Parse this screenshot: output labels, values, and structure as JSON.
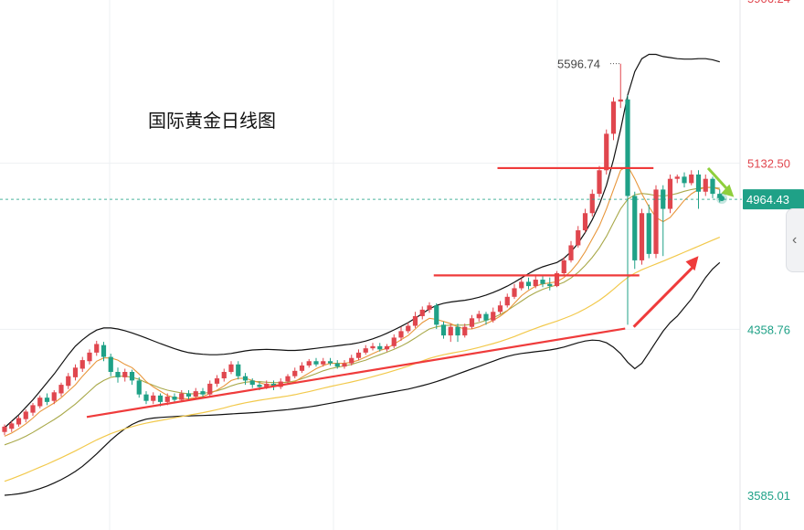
{
  "chart_data": {
    "type": "candlestick",
    "title": "国际黄金日线图",
    "y_tick_labels": [
      "5132.50",
      "4358.76",
      "3585.01"
    ],
    "top_cut_label": "5906.24",
    "current_price": "4964.43",
    "peak_label": "5596.74",
    "ylim": [
      3585.01,
      5906.24
    ],
    "colors": {
      "up": "#e0464e",
      "down": "#1fa187",
      "price_tag": "#1fa187",
      "trend_line": "#ef3b3b",
      "arrow_down": "#8fcf3c",
      "ma_fast": "#e8963a",
      "ma_mid": "#a9a94a",
      "ma_slow": "#f2c94c",
      "band": "#111111"
    },
    "candles": [
      [
        3880,
        3905,
        3865,
        3915
      ],
      [
        3895,
        3920,
        3880,
        3930
      ],
      [
        3915,
        3945,
        3905,
        3955
      ],
      [
        3940,
        3975,
        3925,
        3985
      ],
      [
        3970,
        4005,
        3955,
        4015
      ],
      [
        4000,
        4040,
        3990,
        4050
      ],
      [
        4040,
        4020,
        4005,
        4060
      ],
      [
        4025,
        4065,
        4010,
        4075
      ],
      [
        4060,
        4100,
        4045,
        4110
      ],
      [
        4095,
        4140,
        4080,
        4155
      ],
      [
        4135,
        4180,
        4120,
        4195
      ],
      [
        4175,
        4215,
        4160,
        4230
      ],
      [
        4210,
        4250,
        4195,
        4265
      ],
      [
        4250,
        4290,
        4235,
        4305
      ],
      [
        4285,
        4230,
        4210,
        4300
      ],
      [
        4230,
        4160,
        4140,
        4245
      ],
      [
        4160,
        4135,
        4110,
        4180
      ],
      [
        4135,
        4160,
        4115,
        4175
      ],
      [
        4160,
        4120,
        4100,
        4170
      ],
      [
        4120,
        4055,
        4040,
        4135
      ],
      [
        4055,
        4025,
        4010,
        4070
      ],
      [
        4025,
        4050,
        4010,
        4065
      ],
      [
        4050,
        4020,
        4000,
        4060
      ],
      [
        4020,
        4045,
        4005,
        4060
      ],
      [
        4045,
        4030,
        4015,
        4060
      ],
      [
        4030,
        4060,
        4020,
        4075
      ],
      [
        4060,
        4045,
        4030,
        4075
      ],
      [
        4045,
        4070,
        4035,
        4085
      ],
      [
        4070,
        4055,
        4040,
        4085
      ],
      [
        4055,
        4105,
        4045,
        4120
      ],
      [
        4105,
        4130,
        4090,
        4145
      ],
      [
        4130,
        4160,
        4115,
        4175
      ],
      [
        4160,
        4195,
        4150,
        4210
      ],
      [
        4195,
        4140,
        4125,
        4210
      ],
      [
        4140,
        4120,
        4100,
        4155
      ],
      [
        4120,
        4100,
        4085,
        4130
      ],
      [
        4100,
        4090,
        4075,
        4115
      ],
      [
        4090,
        4105,
        4080,
        4120
      ],
      [
        4105,
        4090,
        4075,
        4120
      ],
      [
        4090,
        4115,
        4080,
        4130
      ],
      [
        4115,
        4140,
        4105,
        4150
      ],
      [
        4140,
        4165,
        4130,
        4180
      ],
      [
        4165,
        4190,
        4155,
        4205
      ],
      [
        4190,
        4210,
        4180,
        4220
      ],
      [
        4210,
        4195,
        4185,
        4225
      ],
      [
        4195,
        4210,
        4185,
        4225
      ],
      [
        4210,
        4200,
        4190,
        4225
      ],
      [
        4200,
        4185,
        4175,
        4215
      ],
      [
        4185,
        4200,
        4175,
        4215
      ],
      [
        4200,
        4225,
        4190,
        4240
      ],
      [
        4225,
        4250,
        4215,
        4265
      ],
      [
        4250,
        4270,
        4240,
        4285
      ],
      [
        4270,
        4280,
        4260,
        4295
      ],
      [
        4280,
        4265,
        4255,
        4295
      ],
      [
        4265,
        4280,
        4255,
        4290
      ],
      [
        4280,
        4320,
        4270,
        4335
      ],
      [
        4320,
        4350,
        4305,
        4370
      ],
      [
        4350,
        4375,
        4340,
        4390
      ],
      [
        4375,
        4420,
        4365,
        4440
      ],
      [
        4420,
        4450,
        4405,
        4465
      ],
      [
        4450,
        4470,
        4435,
        4485
      ],
      [
        4470,
        4380,
        4360,
        4480
      ],
      [
        4380,
        4330,
        4315,
        4395
      ],
      [
        4330,
        4370,
        4300,
        4385
      ],
      [
        4370,
        4330,
        4300,
        4385
      ],
      [
        4330,
        4370,
        4320,
        4385
      ],
      [
        4370,
        4410,
        4360,
        4425
      ],
      [
        4410,
        4430,
        4395,
        4445
      ],
      [
        4430,
        4400,
        4380,
        4440
      ],
      [
        4400,
        4440,
        4390,
        4460
      ],
      [
        4440,
        4470,
        4430,
        4490
      ],
      [
        4470,
        4510,
        4460,
        4525
      ],
      [
        4510,
        4550,
        4500,
        4570
      ],
      [
        4550,
        4580,
        4540,
        4595
      ],
      [
        4580,
        4560,
        4545,
        4600
      ],
      [
        4560,
        4590,
        4550,
        4610
      ],
      [
        4590,
        4570,
        4555,
        4605
      ],
      [
        4570,
        4560,
        4540,
        4600
      ],
      [
        4560,
        4620,
        4555,
        4630
      ],
      [
        4620,
        4680,
        4610,
        4695
      ],
      [
        4680,
        4750,
        4670,
        4770
      ],
      [
        4750,
        4820,
        4740,
        4840
      ],
      [
        4820,
        4900,
        4810,
        4920
      ],
      [
        4900,
        4990,
        4885,
        5010
      ],
      [
        4990,
        5100,
        4975,
        5120
      ],
      [
        5100,
        5270,
        5080,
        5290
      ],
      [
        5270,
        5420,
        5240,
        5440
      ],
      [
        5420,
        5430,
        5390,
        5596.74
      ],
      [
        5430,
        4980,
        4380,
        5450
      ],
      [
        4980,
        4680,
        4640,
        5000
      ],
      [
        4680,
        4900,
        4660,
        4920
      ],
      [
        4900,
        4710,
        4690,
        4940
      ],
      [
        4710,
        5010,
        4690,
        5030
      ],
      [
        5010,
        4920,
        4700,
        5030
      ],
      [
        4920,
        5060,
        4900,
        5080
      ],
      [
        5060,
        5070,
        5040,
        5080
      ],
      [
        5070,
        5040,
        5020,
        5090
      ],
      [
        5040,
        5080,
        5030,
        5100
      ],
      [
        5080,
        5000,
        4920,
        5100
      ],
      [
        5000,
        5060,
        4980,
        5080
      ],
      [
        5060,
        4990,
        4970,
        5070
      ],
      [
        4990,
        4970,
        4950,
        5010
      ]
    ],
    "ma_fast": [
      3860,
      3875,
      3895,
      3918,
      3945,
      3975,
      3995,
      4015,
      4040,
      4070,
      4100,
      4140,
      4175,
      4210,
      4225,
      4225,
      4215,
      4195,
      4180,
      4150,
      4115,
      4090,
      4070,
      4050,
      4040,
      4035,
      4035,
      4040,
      4045,
      4060,
      4075,
      4095,
      4120,
      4130,
      4130,
      4120,
      4110,
      4100,
      4100,
      4100,
      4105,
      4115,
      4135,
      4155,
      4175,
      4190,
      4200,
      4200,
      4200,
      4205,
      4215,
      4230,
      4245,
      4260,
      4270,
      4290,
      4310,
      4330,
      4360,
      4390,
      4410,
      4405,
      4395,
      4385,
      4370,
      4360,
      4360,
      4370,
      4385,
      4400,
      4420,
      4445,
      4480,
      4515,
      4540,
      4560,
      4570,
      4575,
      4580,
      4600,
      4630,
      4670,
      4720,
      4780,
      4840,
      4920,
      5010,
      5100,
      5120,
      5060,
      4990,
      4930,
      4880,
      4860,
      4880,
      4920,
      4960,
      4990,
      5010,
      5020,
      5020,
      5010
    ],
    "ma_mid": [
      3820,
      3832,
      3845,
      3860,
      3878,
      3898,
      3918,
      3938,
      3960,
      3985,
      4010,
      4040,
      4070,
      4100,
      4120,
      4135,
      4140,
      4140,
      4135,
      4125,
      4110,
      4098,
      4085,
      4075,
      4068,
      4062,
      4058,
      4058,
      4060,
      4065,
      4072,
      4082,
      4095,
      4105,
      4112,
      4115,
      4115,
      4112,
      4110,
      4110,
      4112,
      4118,
      4128,
      4140,
      4152,
      4165,
      4175,
      4182,
      4188,
      4195,
      4205,
      4215,
      4228,
      4240,
      4252,
      4265,
      4280,
      4298,
      4318,
      4340,
      4360,
      4370,
      4376,
      4378,
      4378,
      4378,
      4382,
      4390,
      4400,
      4412,
      4428,
      4446,
      4468,
      4490,
      4512,
      4530,
      4545,
      4556,
      4565,
      4578,
      4598,
      4624,
      4656,
      4694,
      4738,
      4792,
      4856,
      4920,
      4964,
      4986,
      4992,
      4988,
      4982,
      4980,
      4984,
      4992,
      5002,
      5010,
      5016,
      5020,
      5020,
      5016
    ],
    "ma_slow": [
      3650,
      3662,
      3675,
      3688,
      3702,
      3716,
      3730,
      3745,
      3760,
      3776,
      3792,
      3809,
      3826,
      3843,
      3858,
      3872,
      3884,
      3895,
      3905,
      3914,
      3921,
      3928,
      3934,
      3940,
      3946,
      3952,
      3958,
      3964,
      3970,
      3977,
      3984,
      3992,
      4001,
      4009,
      4016,
      4022,
      4028,
      4033,
      4038,
      4043,
      4048,
      4054,
      4061,
      4068,
      4076,
      4084,
      4092,
      4099,
      4106,
      4113,
      4121,
      4129,
      4138,
      4147,
      4156,
      4166,
      4176,
      4187,
      4199,
      4211,
      4223,
      4232,
      4240,
      4247,
      4253,
      4259,
      4266,
      4274,
      4283,
      4292,
      4302,
      4313,
      4325,
      4338,
      4351,
      4363,
      4375,
      4386,
      4397,
      4409,
      4422,
      4437,
      4454,
      4473,
      4494,
      4518,
      4545,
      4574,
      4600,
      4620,
      4636,
      4650,
      4663,
      4676,
      4690,
      4704,
      4718,
      4732,
      4746,
      4760,
      4774,
      4788
    ],
    "band_upper": [
      3900,
      3930,
      3960,
      3995,
      4030,
      4070,
      4110,
      4150,
      4195,
      4240,
      4280,
      4310,
      4335,
      4355,
      4365,
      4365,
      4360,
      4352,
      4342,
      4330,
      4318,
      4305,
      4292,
      4280,
      4268,
      4258,
      4250,
      4245,
      4242,
      4240,
      4240,
      4242,
      4246,
      4252,
      4258,
      4262,
      4264,
      4265,
      4264,
      4262,
      4260,
      4260,
      4262,
      4266,
      4270,
      4274,
      4278,
      4282,
      4286,
      4290,
      4296,
      4304,
      4314,
      4326,
      4340,
      4356,
      4372,
      4390,
      4410,
      4432,
      4454,
      4470,
      4480,
      4486,
      4490,
      4494,
      4500,
      4508,
      4518,
      4530,
      4544,
      4560,
      4578,
      4598,
      4618,
      4636,
      4650,
      4660,
      4670,
      4690,
      4720,
      4760,
      4810,
      4870,
      4940,
      5030,
      5150,
      5290,
      5450,
      5560,
      5620,
      5640,
      5640,
      5630,
      5625,
      5620,
      5618,
      5618,
      5620,
      5620,
      5615,
      5605
    ],
    "band_lower": [
      3585,
      3588,
      3592,
      3598,
      3606,
      3616,
      3628,
      3642,
      3658,
      3676,
      3696,
      3720,
      3748,
      3778,
      3810,
      3842,
      3870,
      3895,
      3915,
      3930,
      3940,
      3945,
      3948,
      3950,
      3952,
      3954,
      3955,
      3956,
      3957,
      3958,
      3960,
      3962,
      3964,
      3966,
      3968,
      3970,
      3972,
      3975,
      3978,
      3981,
      3984,
      3988,
      3992,
      3997,
      4002,
      4008,
      4014,
      4020,
      4026,
      4032,
      4038,
      4044,
      4050,
      4056,
      4062,
      4068,
      4074,
      4080,
      4088,
      4096,
      4105,
      4115,
      4126,
      4138,
      4150,
      4162,
      4174,
      4186,
      4198,
      4210,
      4222,
      4232,
      4240,
      4246,
      4250,
      4254,
      4258,
      4262,
      4268,
      4276,
      4286,
      4296,
      4304,
      4308,
      4306,
      4296,
      4275,
      4245,
      4205,
      4175,
      4200,
      4250,
      4300,
      4350,
      4390,
      4420,
      4460,
      4500,
      4550,
      4600,
      4640,
      4670
    ],
    "trend_lines": [
      {
        "from": [
          12,
          3950
        ],
        "to": [
          87,
          4362
        ]
      },
      {
        "from": [
          61,
          4610
        ],
        "to": [
          89,
          4610
        ]
      },
      {
        "from": [
          70,
          5110
        ],
        "to": [
          91,
          5110
        ]
      }
    ]
  }
}
